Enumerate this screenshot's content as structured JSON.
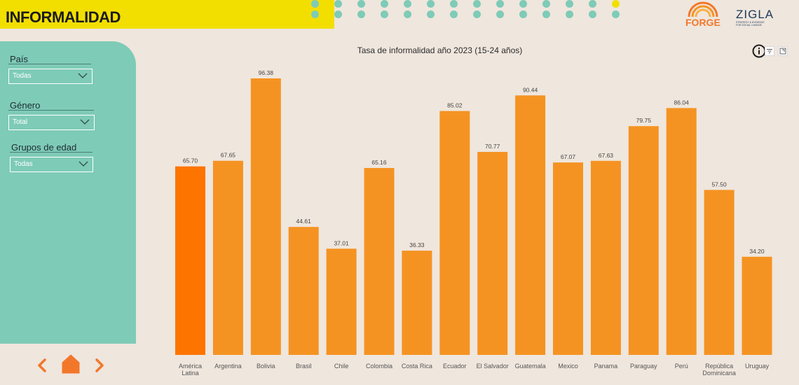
{
  "header": {
    "title": "INFORMALIDAD"
  },
  "logos": {
    "forge": "FORGE",
    "zigla": "ZIGLA",
    "zigla_tagline": [
      "STRATEGY & EVIDENCE",
      "FOR SOCIAL CHANGE"
    ]
  },
  "filters": {
    "country": {
      "label": "País",
      "value": "Todas"
    },
    "gender": {
      "label": "Género",
      "value": "Total"
    },
    "age_group": {
      "label": "Grupos de edad",
      "value": "Todas"
    }
  },
  "colors": {
    "banner": "#f2df00",
    "sidebar": "#7ecbb7",
    "bar": "#f59322",
    "bar_highlight": "#fe7400",
    "background": "#efe6dd"
  },
  "icons": {
    "info": "info-icon",
    "filter": "filter-icon",
    "focus": "focus-mode-icon",
    "prev": "chevron-left-icon",
    "next": "chevron-right-icon",
    "home": "home-icon"
  },
  "chart_data": {
    "type": "bar",
    "title": "Tasa de informalidad año 2023 (15-24 años)",
    "categories": [
      [
        "América",
        "Latina"
      ],
      [
        "Argentina"
      ],
      [
        "Bolivia"
      ],
      [
        "Brasil"
      ],
      [
        "Chile"
      ],
      [
        "Colombia"
      ],
      [
        "Costa Rica"
      ],
      [
        "Ecuador"
      ],
      [
        "El Salvador"
      ],
      [
        "Guatemala"
      ],
      [
        "Mexico"
      ],
      [
        "Panama"
      ],
      [
        "Paraguay"
      ],
      [
        "Perú"
      ],
      [
        "República",
        "Dominicana"
      ],
      [
        "Uruguay"
      ]
    ],
    "values": [
      65.7,
      67.65,
      96.38,
      44.61,
      37.01,
      65.16,
      36.33,
      85.02,
      70.77,
      90.44,
      67.07,
      67.63,
      79.75,
      86.04,
      57.5,
      34.2
    ],
    "value_labels": [
      "65.70",
      "67.65",
      "96.38",
      "44.61",
      "37.01",
      "65.16",
      "36.33",
      "85.02",
      "70.77",
      "90.44",
      "67.07",
      "67.63",
      "79.75",
      "86.04",
      "57.50",
      "34.20"
    ],
    "highlight_index": 0,
    "ylim": [
      0,
      100
    ],
    "grid": false,
    "legend": "none"
  }
}
